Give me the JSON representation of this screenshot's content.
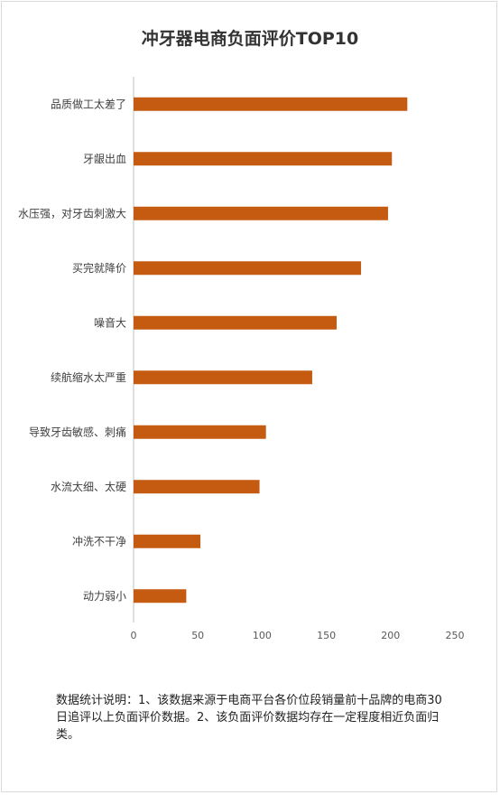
{
  "chart_data": {
    "type": "bar",
    "orientation": "horizontal",
    "title": "冲牙器电商负面评价TOP10",
    "categories": [
      "品质做工太差了",
      "牙龈出血",
      "水压强，对牙齿刺激大",
      "买完就降价",
      "噪音大",
      "续航缩水太严重",
      "导致牙齿敏感、刺痛",
      "水流太细、太硬",
      "冲洗不干净",
      "动力弱小"
    ],
    "values": [
      213,
      201,
      198,
      177,
      158,
      139,
      103,
      98,
      52,
      41
    ],
    "xlim": [
      0,
      250
    ],
    "xticks": [
      "0",
      "50",
      "100",
      "150",
      "200",
      "250"
    ],
    "bar_color": "#c55a11",
    "grid": false,
    "legend": "none"
  },
  "note": "数据统计说明：1、该数据来源于电商平台各价位段销量前十品牌的电商30日追评以上负面评价数据。2、该负面评价数据均存在一定程度相近负面归类。"
}
